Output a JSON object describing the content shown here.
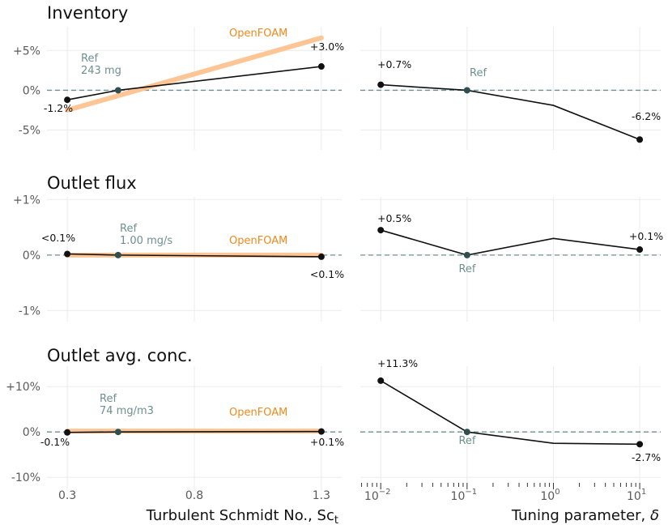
{
  "chart_data": [
    {
      "type": "line",
      "title": "Inventory",
      "left": {
        "x": [
          0.3,
          0.5,
          1.3
        ],
        "y": [
          -1.2,
          0,
          3.0
        ],
        "labels": [
          "-1.2%",
          "",
          "+3.0%"
        ],
        "ref_label": [
          "Ref",
          "243 mg"
        ],
        "openfoam": {
          "name": "OpenFOAM",
          "x": [
            0.3,
            1.3
          ],
          "y": [
            -2.5,
            6.6
          ]
        },
        "ylim": [
          -7.5,
          8
        ],
        "yticks": [
          5,
          0,
          -5
        ],
        "yticklabels": [
          "+5%",
          "0%",
          "-5%"
        ]
      },
      "right": {
        "x": [
          0.01,
          0.1,
          1,
          10
        ],
        "y": [
          0.7,
          0,
          -1.9,
          -6.2
        ],
        "labels": [
          "+0.7%",
          "Ref",
          "",
          "-6.2%"
        ]
      }
    },
    {
      "type": "line",
      "title": "Outlet flux",
      "left": {
        "x": [
          0.3,
          0.5,
          1.3
        ],
        "y": [
          0.02,
          0,
          -0.03
        ],
        "labels": [
          "<0.1%",
          "",
          "<0.1%"
        ],
        "ref_label": [
          "Ref",
          "1.00 mg/s"
        ],
        "openfoam": {
          "name": "OpenFOAM",
          "x": [
            0.3,
            1.3
          ],
          "y": [
            0,
            0
          ]
        },
        "ylim": [
          -1.2,
          1.05
        ],
        "yticks": [
          1,
          0,
          -1
        ],
        "yticklabels": [
          "+1%",
          "0%",
          "-1%"
        ]
      },
      "right": {
        "x": [
          0.01,
          0.1,
          1,
          10
        ],
        "y": [
          0.45,
          0,
          0.3,
          0.1
        ],
        "labels": [
          "+0.5%",
          "Ref",
          "",
          "+0.1%"
        ]
      }
    },
    {
      "type": "line",
      "title": "Outlet avg. conc.",
      "left": {
        "x": [
          0.3,
          0.5,
          1.3
        ],
        "y": [
          -0.1,
          0,
          0.1
        ],
        "labels": [
          "-0.1%",
          "",
          "+0.1%"
        ],
        "ref_label": [
          "Ref",
          "74 mg/m3"
        ],
        "openfoam": {
          "name": "OpenFOAM",
          "x": [
            0.3,
            1.3
          ],
          "y": [
            0.2,
            0.2
          ]
        },
        "ylim": [
          -13,
          14.5
        ],
        "yticks": [
          10,
          0,
          -10
        ],
        "yticklabels": [
          "+10%",
          "0%",
          "-10%"
        ]
      },
      "right": {
        "x": [
          0.01,
          0.1,
          1,
          10
        ],
        "y": [
          11.3,
          0,
          -2.5,
          -2.7
        ],
        "labels": [
          "+11.3%",
          "Ref",
          "",
          "-2.7%"
        ]
      }
    }
  ],
  "axes": {
    "left_x": {
      "label": "Turbulent Schmidt No., Sc",
      "label_sub": "t",
      "xlim": [
        0.22,
        1.38
      ],
      "ticks": [
        0.3,
        0.8,
        1.3
      ],
      "ticklabels": [
        "0.3",
        "0.8",
        "1.3"
      ]
    },
    "right_x": {
      "label": "Tuning parameter, ",
      "label_sym": "δ",
      "scale": "log",
      "xlim": [
        0.0058,
        17.5
      ],
      "ticks": [
        0.01,
        0.1,
        1,
        10
      ],
      "tick_base": "10",
      "tick_exponents": [
        "−2",
        "−1",
        "0",
        "1"
      ]
    }
  },
  "colors": {
    "line": "#111111",
    "openfoam": "#ffc595",
    "openfoam_text": "#f08a1c",
    "ref_point": "#2f5050",
    "ref_text": "#6e8f8f",
    "zero_line": "#6e8f8f",
    "grid": "#ebebeb"
  }
}
